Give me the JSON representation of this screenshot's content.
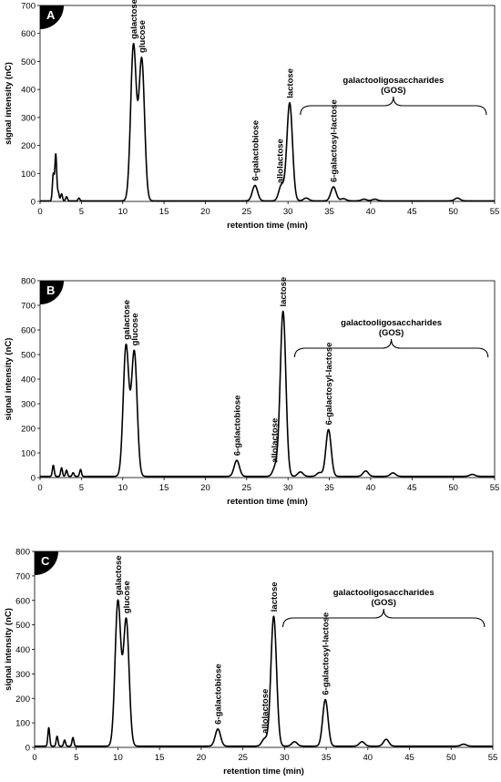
{
  "chart_data": [
    {
      "type": "line",
      "panel": "A",
      "xlabel": "retention time (min)",
      "ylabel": "signal intensity (nC)",
      "xlim": [
        0,
        55
      ],
      "ylim": [
        0,
        700
      ],
      "xticks": [
        0,
        5,
        10,
        15,
        20,
        25,
        30,
        35,
        40,
        45,
        50,
        55
      ],
      "yticks": [
        0,
        100,
        200,
        300,
        400,
        500,
        600,
        700
      ],
      "grid": false,
      "baseline": 2,
      "peaks": [
        {
          "x": 1.6,
          "y": 95
        },
        {
          "x": 1.9,
          "y": 165
        },
        {
          "x": 2.2,
          "y": 30
        },
        {
          "x": 2.6,
          "y": 25
        },
        {
          "x": 3.2,
          "y": 15
        },
        {
          "x": 4.7,
          "y": 10
        },
        {
          "x": 11.3,
          "y": 555
        },
        {
          "x": 12.3,
          "y": 505
        },
        {
          "x": 26.0,
          "y": 55
        },
        {
          "x": 29.2,
          "y": 55
        },
        {
          "x": 30.2,
          "y": 350
        },
        {
          "x": 32.2,
          "y": 10
        },
        {
          "x": 35.5,
          "y": 50
        },
        {
          "x": 36.7,
          "y": 8
        },
        {
          "x": 39.2,
          "y": 6
        },
        {
          "x": 40.5,
          "y": 6
        },
        {
          "x": 50.5,
          "y": 10
        }
      ],
      "labels": [
        {
          "text": "galactose",
          "x": 11.3
        },
        {
          "text": "glucose",
          "x": 12.3
        },
        {
          "text": "6-galactobiose",
          "x": 26.0
        },
        {
          "text": "allolactose",
          "x": 29.0
        },
        {
          "text": "lactose",
          "x": 30.2
        },
        {
          "text": "6-galactosyl-lactose",
          "x": 35.5
        }
      ],
      "gos_range": [
        31.5,
        54.0
      ],
      "gos_label": [
        "galactooligosaccharides",
        "(GOS)"
      ]
    },
    {
      "type": "line",
      "panel": "B",
      "xlabel": "retention time (min)",
      "ylabel": "signal intensity (nC)",
      "xlim": [
        0,
        55
      ],
      "ylim": [
        0,
        800
      ],
      "xticks": [
        0,
        5,
        10,
        15,
        20,
        25,
        30,
        35,
        40,
        45,
        50,
        55
      ],
      "yticks": [
        0,
        100,
        200,
        300,
        400,
        500,
        600,
        700,
        800
      ],
      "grid": false,
      "baseline": 5,
      "peaks": [
        {
          "x": 1.6,
          "y": 45
        },
        {
          "x": 2.6,
          "y": 35
        },
        {
          "x": 3.2,
          "y": 25
        },
        {
          "x": 4.0,
          "y": 15
        },
        {
          "x": 4.9,
          "y": 28
        },
        {
          "x": 10.4,
          "y": 530
        },
        {
          "x": 11.4,
          "y": 505
        },
        {
          "x": 23.8,
          "y": 65
        },
        {
          "x": 28.5,
          "y": 40
        },
        {
          "x": 29.4,
          "y": 670
        },
        {
          "x": 31.5,
          "y": 18
        },
        {
          "x": 33.8,
          "y": 15
        },
        {
          "x": 34.9,
          "y": 190
        },
        {
          "x": 39.4,
          "y": 22
        },
        {
          "x": 42.7,
          "y": 14
        },
        {
          "x": 52.3,
          "y": 8
        }
      ],
      "labels": [
        {
          "text": "galactose",
          "x": 10.4
        },
        {
          "text": "glucose",
          "x": 11.4
        },
        {
          "text": "6-galactobiose",
          "x": 23.8
        },
        {
          "text": "allolactose",
          "x": 28.3
        },
        {
          "text": "lactose",
          "x": 29.4
        },
        {
          "text": "6-galactosyl-lactose",
          "x": 34.9
        }
      ],
      "gos_range": [
        30.8,
        54.2
      ],
      "gos_label": [
        "galactooligosaccharides",
        "(GOS)"
      ]
    },
    {
      "type": "line",
      "panel": "C",
      "xlabel": "retention time (min)",
      "ylabel": "signal intensity (nC)",
      "xlim": [
        0,
        55
      ],
      "ylim": [
        0,
        800
      ],
      "xticks": [
        0,
        5,
        10,
        15,
        20,
        25,
        30,
        35,
        40,
        45,
        50,
        55
      ],
      "yticks": [
        0,
        100,
        200,
        300,
        400,
        500,
        600,
        700,
        800
      ],
      "grid": false,
      "baseline": 5,
      "peaks": [
        {
          "x": 1.7,
          "y": 75
        },
        {
          "x": 2.7,
          "y": 40
        },
        {
          "x": 3.6,
          "y": 25
        },
        {
          "x": 4.6,
          "y": 35
        },
        {
          "x": 10.0,
          "y": 590
        },
        {
          "x": 11.0,
          "y": 515
        },
        {
          "x": 22.0,
          "y": 70
        },
        {
          "x": 27.6,
          "y": 30
        },
        {
          "x": 28.7,
          "y": 530
        },
        {
          "x": 31.2,
          "y": 18
        },
        {
          "x": 34.9,
          "y": 190
        },
        {
          "x": 39.3,
          "y": 18
        },
        {
          "x": 42.2,
          "y": 28
        },
        {
          "x": 51.5,
          "y": 8
        }
      ],
      "labels": [
        {
          "text": "galactose",
          "x": 10.0
        },
        {
          "text": "glucose",
          "x": 11.0
        },
        {
          "text": "6-galactobiose",
          "x": 22.0
        },
        {
          "text": "allolactose",
          "x": 27.6
        },
        {
          "text": "lactose",
          "x": 28.7
        },
        {
          "text": "6-galactosyl-lactose",
          "x": 34.9
        }
      ],
      "gos_range": [
        29.8,
        54.0
      ],
      "gos_label": [
        "galactooligosaccharides",
        "(GOS)"
      ]
    }
  ]
}
